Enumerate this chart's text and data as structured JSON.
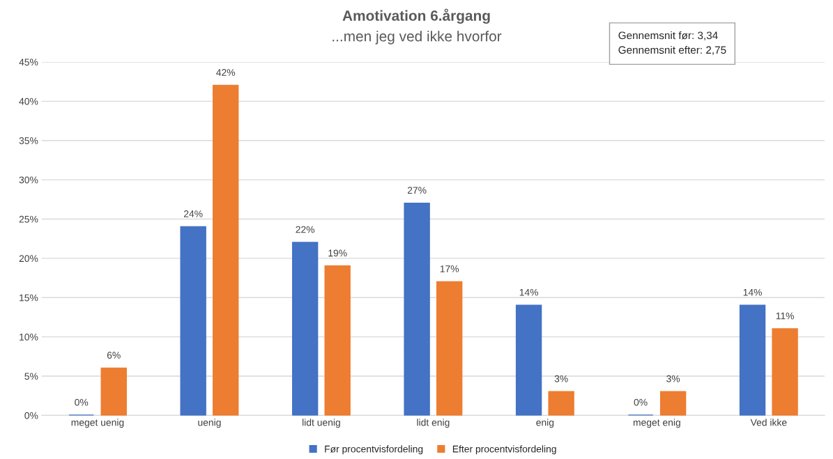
{
  "chart_data": {
    "type": "bar",
    "title": "Amotivation 6.årgang",
    "subtitle": "...men jeg ved ikke hvorfor",
    "categories": [
      "meget uenig",
      "uenig",
      "lidt uenig",
      "lidt enig",
      "enig",
      "meget enig",
      "Ved ikke"
    ],
    "series": [
      {
        "name": "Før procentvisfordeling",
        "color": "#4472c4",
        "values": [
          0,
          24,
          22,
          27,
          14,
          0,
          14
        ],
        "value_labels": [
          "0%",
          "24%",
          "22%",
          "27%",
          "14%",
          "0%",
          "14%"
        ]
      },
      {
        "name": "Efter procentvisfordeling",
        "color": "#ed7d31",
        "values": [
          6,
          42,
          19,
          17,
          3,
          3,
          11
        ],
        "value_labels": [
          "6%",
          "42%",
          "19%",
          "17%",
          "3%",
          "3%",
          "11%"
        ]
      }
    ],
    "ylim": [
      0,
      45
    ],
    "yticks": [
      {
        "value": 0,
        "label": "0%"
      },
      {
        "value": 5,
        "label": "5%"
      },
      {
        "value": 10,
        "label": "10%"
      },
      {
        "value": 15,
        "label": "15%"
      },
      {
        "value": 20,
        "label": "20%"
      },
      {
        "value": 25,
        "label": "25%"
      },
      {
        "value": 30,
        "label": "30%"
      },
      {
        "value": 35,
        "label": "35%"
      },
      {
        "value": 40,
        "label": "40%"
      },
      {
        "value": 45,
        "label": "45%"
      }
    ],
    "grid": "y",
    "legend": "bottom",
    "annotations": [
      "Gennemsnit før: 3,34",
      "Gennemsnit efter: 2,75"
    ]
  }
}
